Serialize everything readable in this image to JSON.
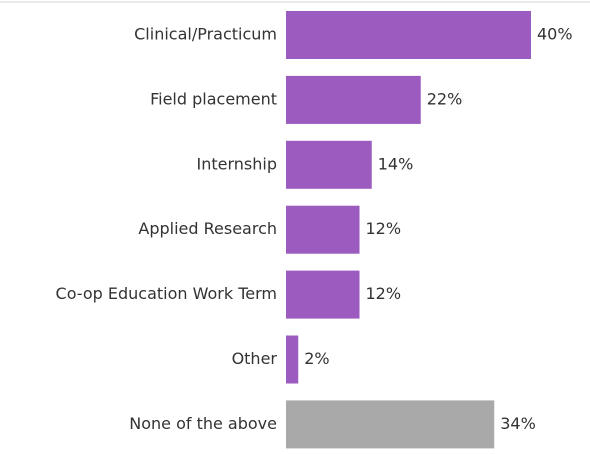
{
  "chart_data": {
    "type": "bar",
    "orientation": "horizontal",
    "categories": [
      "Clinical/Practicum",
      "Field placement",
      "Internship",
      "Applied Research",
      "Co-op Education Work Term",
      "Other",
      "None of the above"
    ],
    "values": [
      40,
      22,
      14,
      12,
      12,
      2,
      34
    ],
    "value_labels": [
      "40%",
      "22%",
      "14%",
      "12%",
      "12%",
      "2%",
      "34%"
    ],
    "colors": [
      "#9b5bbf",
      "#9b5bbf",
      "#9b5bbf",
      "#9b5bbf",
      "#9b5bbf",
      "#9b5bbf",
      "#a9a9a9"
    ]
  }
}
